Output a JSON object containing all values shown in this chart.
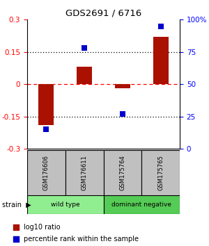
{
  "title": "GDS2691 / 6716",
  "samples": [
    "GSM176606",
    "GSM176611",
    "GSM175764",
    "GSM175765"
  ],
  "log10_ratio": [
    -0.19,
    0.08,
    -0.02,
    0.22
  ],
  "percentile_rank": [
    15,
    78,
    27,
    95
  ],
  "groups": [
    {
      "name": "wild type",
      "color": "#90EE90",
      "samples": [
        0,
        1
      ]
    },
    {
      "name": "dominant negative",
      "color": "#55CC55",
      "samples": [
        2,
        3
      ]
    }
  ],
  "ylim_left": [
    -0.3,
    0.3
  ],
  "ylim_right": [
    0,
    100
  ],
  "yticks_left": [
    -0.3,
    -0.15,
    0,
    0.15,
    0.3
  ],
  "yticks_right": [
    0,
    25,
    50,
    75,
    100
  ],
  "ytick_labels_right": [
    "0",
    "25",
    "50",
    "75",
    "100%"
  ],
  "hlines": [
    -0.15,
    0,
    0.15
  ],
  "hline_colors": [
    "black",
    "red",
    "black"
  ],
  "hline_styles": [
    "dotted",
    "dashed",
    "dotted"
  ],
  "bar_color": "#AA1100",
  "dot_color": "#0000CC",
  "bar_width": 0.4,
  "dot_size": 40,
  "sample_box_color": "#C0C0C0",
  "legend_bar_color": "#AA1100",
  "legend_dot_color": "#0000CC",
  "fig_width": 3.0,
  "fig_height": 3.54,
  "dpi": 100
}
